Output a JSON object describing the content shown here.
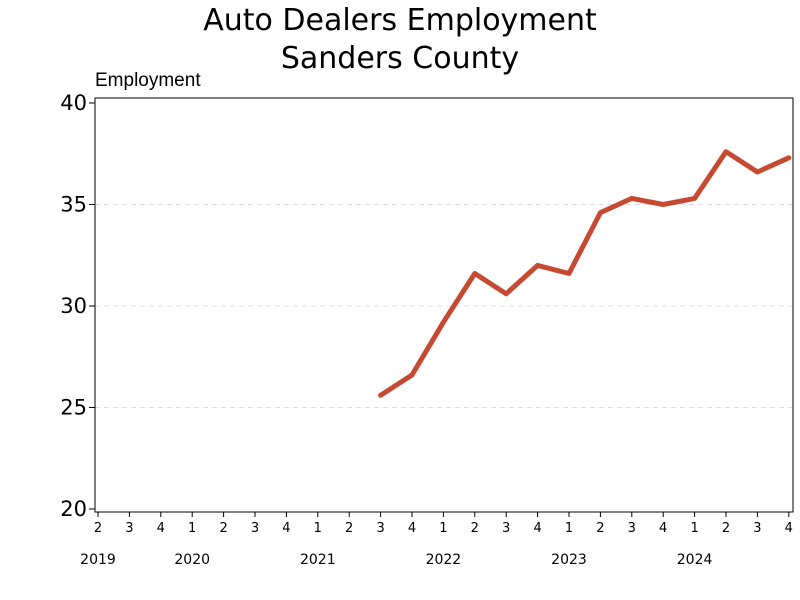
{
  "chart_data": {
    "type": "line",
    "title": "Auto Dealers Employment",
    "subtitle": "Sanders County",
    "ylabel": "Employment",
    "xlabel": "",
    "ylim": [
      20,
      40
    ],
    "yticks": [
      20,
      25,
      30,
      35,
      40
    ],
    "grid": true,
    "line_color": "#c64a32",
    "x_quarter_labels": [
      "2",
      "3",
      "4",
      "1",
      "2",
      "3",
      "4",
      "1",
      "2",
      "3",
      "4",
      "1",
      "2",
      "3",
      "4",
      "1",
      "2",
      "3",
      "4",
      "1",
      "2",
      "3",
      "4"
    ],
    "x_year_labels": [
      {
        "label": "2019",
        "index": 0
      },
      {
        "label": "2020",
        "index": 3
      },
      {
        "label": "2021",
        "index": 7
      },
      {
        "label": "2022",
        "index": 11
      },
      {
        "label": "2023",
        "index": 15
      },
      {
        "label": "2024",
        "index": 19
      }
    ],
    "series": [
      {
        "values": [
          null,
          null,
          null,
          null,
          null,
          null,
          null,
          null,
          null,
          25.6,
          26.6,
          29.2,
          31.6,
          30.6,
          32.0,
          31.6,
          34.6,
          35.3,
          35.0,
          35.3,
          37.6,
          36.6,
          37.3
        ]
      }
    ]
  }
}
